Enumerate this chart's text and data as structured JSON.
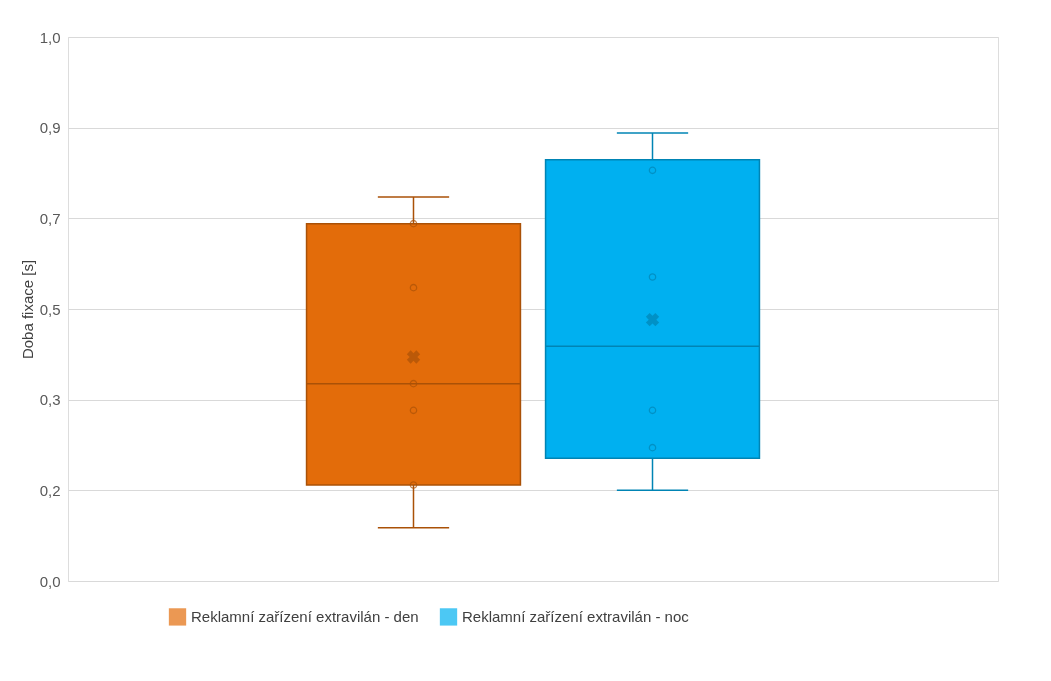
{
  "chart_data": {
    "type": "box",
    "ylabel": "Doba fixace [s]",
    "categories": [
      null
    ],
    "ylim": [
      0,
      1.02
    ],
    "yticks": [
      {
        "value": 0,
        "label": "0,0"
      },
      {
        "value": 0.17,
        "label": "0,2"
      },
      {
        "value": 0.34,
        "label": "0,3"
      },
      {
        "value": 0.51,
        "label": "0,5"
      },
      {
        "value": 0.68,
        "label": "0,7"
      },
      {
        "value": 0.85,
        "label": "0,9"
      },
      {
        "value": 1.02,
        "label": "1,0"
      }
    ],
    "grid": "y",
    "legend": "bottom",
    "series": [
      {
        "name": "Reklamní zařízení extravilán - den",
        "color": "#e36c0a",
        "boxes": [
          {
            "low": 0.1,
            "q1": 0.18,
            "median": 0.37,
            "q3": 0.67,
            "high": 0.72,
            "mean": 0.42
          }
        ]
      },
      {
        "name": "Reklamní zařízení extravilán - noc",
        "color": "#00b0f0",
        "boxes": [
          {
            "low": 0.17,
            "q1": 0.23,
            "median": 0.44,
            "q3": 0.79,
            "high": 0.84,
            "mean": 0.49
          }
        ]
      },
      {
        "type": "scatter",
        "color": "#aa5107",
        "marker": "circle",
        "x": [
          null,
          null,
          null,
          null,
          null
        ],
        "values": [
          0.67,
          0.55,
          0.37,
          0.32,
          0.18
        ]
      },
      {
        "type": "scatter",
        "color": "#0084b4",
        "marker": "circle",
        "x": [
          null,
          null,
          null,
          null
        ],
        "values": [
          0.77,
          0.57,
          0.32,
          0.25
        ]
      }
    ]
  }
}
